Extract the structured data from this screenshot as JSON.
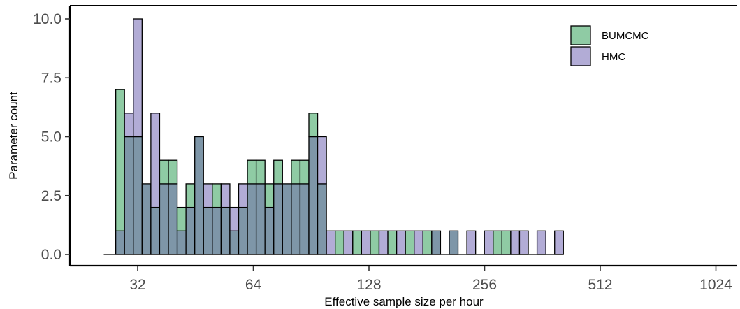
{
  "chart_data": {
    "type": "bar",
    "subtype": "overlapping-histogram",
    "xlabel": "Effective sample size per hour",
    "ylabel": "Parameter count",
    "x_scale": "log2",
    "x_ticks": [
      32,
      64,
      128,
      256,
      512,
      1024
    ],
    "x_tick_labels": [
      "32",
      "64",
      "128",
      "256",
      "512",
      "1024"
    ],
    "y_ticks": [
      0,
      2.5,
      5,
      7.5,
      10
    ],
    "y_tick_labels": [
      "0.0",
      "2.5",
      "5.0",
      "7.5",
      "10.0"
    ],
    "ylim": [
      0,
      10
    ],
    "grid": false,
    "legend_position": "top-right",
    "colors": {
      "BUMCMC": "#8fcba4",
      "HMC": "#b2acd6",
      "overlap": "#7e96a8",
      "outline": "#000000"
    },
    "bin_log2_start": 4.8105,
    "bin_log2_width": 0.0759,
    "series": [
      {
        "name": "BUMCMC",
        "values": [
          7,
          5,
          5,
          3,
          2,
          4,
          4,
          2,
          3,
          5,
          2,
          3,
          2,
          1,
          2,
          4,
          4,
          3,
          4,
          3,
          4,
          4,
          6,
          3,
          0,
          1,
          0,
          1,
          0,
          1,
          0,
          1,
          0,
          1,
          0,
          1,
          1,
          0,
          1,
          0,
          0,
          0,
          0,
          1,
          1,
          0,
          0,
          0,
          0,
          0,
          0
        ]
      },
      {
        "name": "HMC",
        "values": [
          1,
          6,
          10,
          3,
          6,
          3,
          3,
          1,
          2,
          5,
          3,
          2,
          3,
          2,
          3,
          3,
          3,
          2,
          3,
          3,
          3,
          3,
          5,
          5,
          1,
          0,
          1,
          0,
          1,
          0,
          1,
          0,
          1,
          0,
          1,
          0,
          1,
          0,
          1,
          0,
          1,
          0,
          1,
          0,
          0,
          1,
          1,
          0,
          1,
          0,
          1
        ]
      }
    ]
  }
}
